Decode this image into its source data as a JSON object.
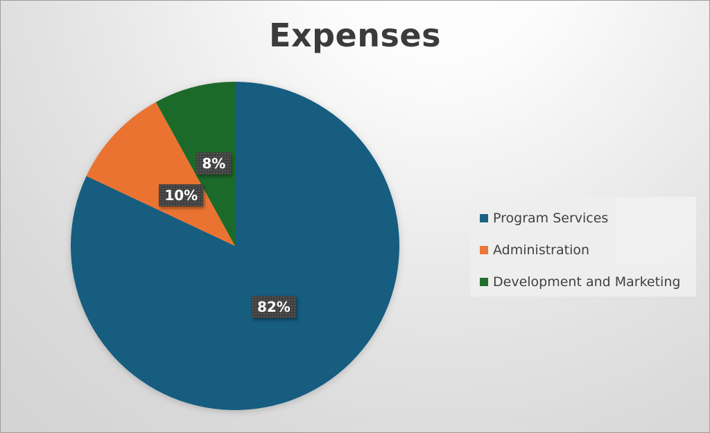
{
  "chart_data": {
    "type": "pie",
    "title": "Expenses",
    "categories": [
      "Program Services",
      "Administration",
      "Development and Marketing"
    ],
    "values": [
      82,
      10,
      8
    ],
    "labels": [
      "82%",
      "10%",
      "8%"
    ],
    "colors": [
      "#155d80",
      "#ea7333",
      "#1b6b2a"
    ],
    "legend": "right"
  }
}
